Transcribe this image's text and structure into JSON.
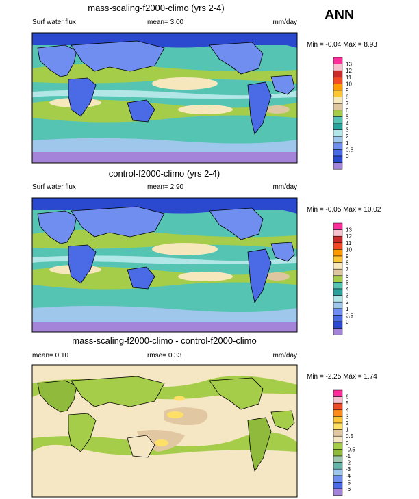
{
  "page_label": "ANN",
  "chart_data": [
    {
      "type": "heatmap",
      "title": "mass-scaling-f2000-climo (yrs 2-4)",
      "variable": "Surf water flux",
      "mean_text": "mean=  3.00",
      "units": "mm/day",
      "minmax_text": "Min = -0.04 Max =  8.93",
      "levels": [
        "0",
        "0.5",
        "1",
        "2",
        "3",
        "4",
        "5",
        "6",
        "7",
        "8",
        "9",
        "10",
        "11",
        "12",
        "13"
      ],
      "colors": [
        "#a484d9",
        "#2b49cf",
        "#4a6ae6",
        "#6f8ef0",
        "#9fc7ec",
        "#b3e6e6",
        "#2aa39c",
        "#55c4b3",
        "#a6cd4a",
        "#dec7a0",
        "#f7e7bc",
        "#ffc633",
        "#ff9a00",
        "#f24a23",
        "#cc2a2a",
        "#f7c2d0",
        "#ff2c9c"
      ]
    },
    {
      "type": "heatmap",
      "title": "control-f2000-climo (yrs 2-4)",
      "variable": "Surf water flux",
      "mean_text": "mean=  2.90",
      "units": "mm/day",
      "minmax_text": "Min = -0.05 Max = 10.02",
      "levels": [
        "0",
        "0.5",
        "1",
        "2",
        "3",
        "4",
        "5",
        "6",
        "7",
        "8",
        "9",
        "10",
        "11",
        "12",
        "13"
      ],
      "colors": [
        "#a484d9",
        "#2b49cf",
        "#4a6ae6",
        "#6f8ef0",
        "#9fc7ec",
        "#b3e6e6",
        "#2aa39c",
        "#55c4b3",
        "#a6cd4a",
        "#dec7a0",
        "#f7e7bc",
        "#ffc633",
        "#ff9a00",
        "#f24a23",
        "#cc2a2a",
        "#f7c2d0",
        "#ff2c9c"
      ]
    },
    {
      "type": "heatmap",
      "title": "mass-scaling-f2000-climo - control-f2000-climo",
      "mean_text": "mean=  0.10",
      "rmse_text": "rmse=  0.33",
      "units": "mm/day",
      "minmax_text": "Min = -2.25 Max =  1.74",
      "levels": [
        "-6",
        "-5",
        "-4",
        "-3",
        "-2",
        "-1",
        "-0.5",
        "0",
        "0.5",
        "1",
        "2",
        "3",
        "4",
        "5",
        "6"
      ],
      "colors": [
        "#a484d9",
        "#4a6ae6",
        "#6f8ef0",
        "#9fc7ec",
        "#66b3a8",
        "#a0c7b0",
        "#8fba3c",
        "#a6cd4a",
        "#f5e6c4",
        "#e2c8a2",
        "#ffe066",
        "#ffc633",
        "#ff8c1a",
        "#f24a23",
        "#f7c2d0",
        "#ff2c9c"
      ]
    }
  ]
}
